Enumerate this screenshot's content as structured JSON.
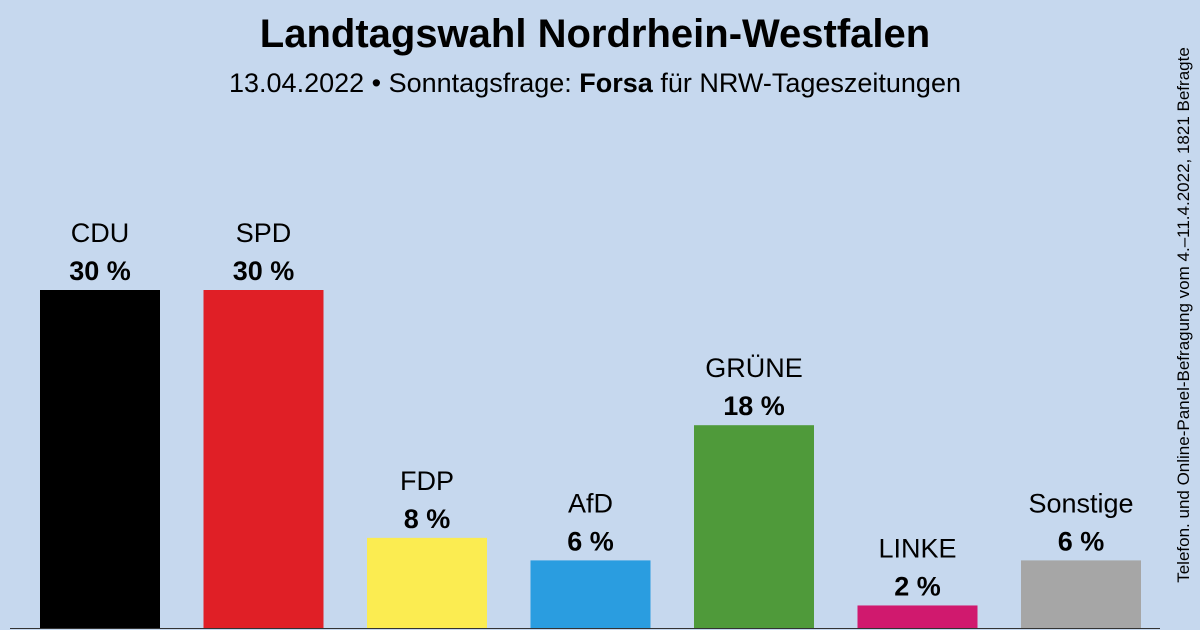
{
  "header": {
    "title": "Landtagswahl Nordrhein-Westfalen",
    "date": "13.04.2022",
    "separator": "•",
    "question": "Sonntagsfrage:",
    "institute": "Forsa",
    "client": "für NRW-Tageszeitungen"
  },
  "side_note": "Telefon. und Online-Panel-Befragung vom 4.–11.4.2022, 1821 Befragte",
  "chart_data": {
    "type": "bar",
    "title": "Landtagswahl Nordrhein-Westfalen",
    "subtitle": "13.04.2022 • Sonntagsfrage: Forsa für NRW-Tageszeitungen",
    "categories": [
      "CDU",
      "SPD",
      "FDP",
      "AfD",
      "GRÜNE",
      "LINKE",
      "Sonstige"
    ],
    "values": [
      30,
      30,
      8,
      6,
      18,
      2,
      6
    ],
    "value_labels": [
      "30 %",
      "30 %",
      "8 %",
      "6 %",
      "18 %",
      "2 %",
      "6 %"
    ],
    "colors": [
      "#000000",
      "#e01f26",
      "#fbec51",
      "#2a9de0",
      "#4f9a3a",
      "#d0196e",
      "#a6a6a6"
    ],
    "unit": "%",
    "xlabel": "",
    "ylabel": "",
    "ylim": [
      0,
      30
    ],
    "grid": false,
    "legend": "none"
  }
}
